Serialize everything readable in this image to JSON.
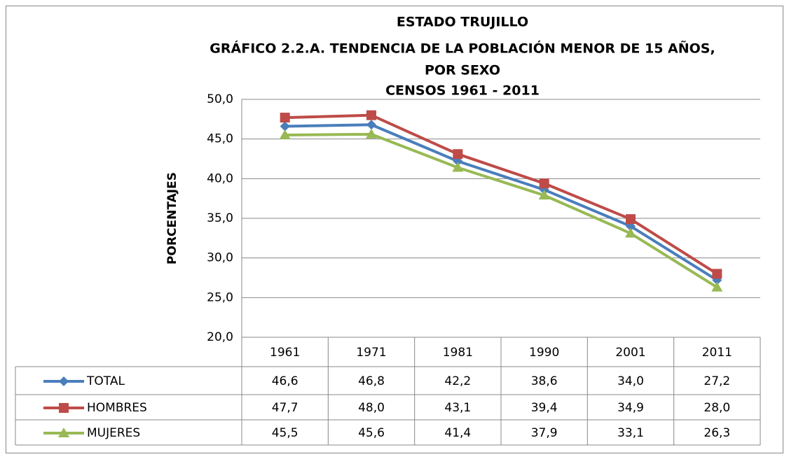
{
  "chart_data": {
    "type": "line",
    "title": [
      "ESTADO TRUJILLO",
      "GRÁFICO 2.2.A. TENDENCIA DE LA POBLACIÓN MENOR DE 15 AÑOS,",
      "POR SEXO",
      "CENSOS 1961 - 2011"
    ],
    "y_label": "PORCENTAJES",
    "categories": [
      "1961",
      "1971",
      "1981",
      "1990",
      "2001",
      "2011"
    ],
    "series": [
      {
        "name": "TOTAL",
        "color": "#4a7ebb",
        "marker": "diamond",
        "values": [
          46.6,
          46.8,
          42.2,
          38.6,
          34.0,
          27.2
        ],
        "value_labels": [
          "46,6",
          "46,8",
          "42,2",
          "38,6",
          "34,0",
          "27,2"
        ]
      },
      {
        "name": "HOMBRES",
        "color": "#be4b48",
        "marker": "square",
        "values": [
          47.7,
          48.0,
          43.1,
          39.4,
          34.9,
          28.0
        ],
        "value_labels": [
          "47,7",
          "48,0",
          "43,1",
          "39,4",
          "34,9",
          "28,0"
        ]
      },
      {
        "name": "MUJERES",
        "color": "#98b954",
        "marker": "triangle",
        "values": [
          45.5,
          45.6,
          41.4,
          37.9,
          33.1,
          26.3
        ],
        "value_labels": [
          "45,5",
          "45,6",
          "41,4",
          "37,9",
          "33,1",
          "26,3"
        ]
      }
    ],
    "ylim": [
      20,
      50
    ],
    "yticks": [
      {
        "value": 20,
        "label": "20,0"
      },
      {
        "value": 25,
        "label": "25,0"
      },
      {
        "value": 30,
        "label": "30,0"
      },
      {
        "value": 35,
        "label": "35,0"
      },
      {
        "value": 40,
        "label": "40,0"
      },
      {
        "value": 45,
        "label": "45,0"
      },
      {
        "value": 50,
        "label": "50,0"
      }
    ],
    "grid": true
  }
}
